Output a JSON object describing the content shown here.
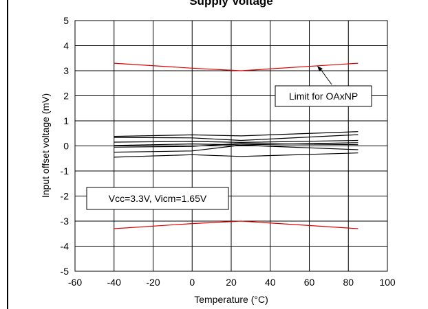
{
  "chart_data": {
    "type": "line",
    "title": "Supply Voltage",
    "xlabel": "Temperature (°C)",
    "ylabel": "Input offset voltage (mV)",
    "xlim": [
      -60,
      100
    ],
    "ylim": [
      -5,
      5
    ],
    "xticks": [
      "-60",
      "-40",
      "-20",
      "0",
      "20",
      "40",
      "60",
      "80",
      "100"
    ],
    "yticks": [
      "5",
      "4",
      "3",
      "2",
      "1",
      "0",
      "-1",
      "-2",
      "-3",
      "-4",
      "-5"
    ],
    "grid": true,
    "x": [
      -40,
      0,
      25,
      85
    ],
    "series": [
      {
        "name": "",
        "color": "#000000",
        "values": [
          0.38,
          0.44,
          0.4,
          0.57
        ]
      },
      {
        "name": "",
        "color": "#000000",
        "values": [
          0.34,
          0.32,
          0.22,
          0.45
        ]
      },
      {
        "name": "",
        "color": "#000000",
        "values": [
          0.15,
          0.18,
          0.14,
          0.22
        ]
      },
      {
        "name": "",
        "color": "#000000",
        "values": [
          0.02,
          0.08,
          0.04,
          0.13
        ]
      },
      {
        "name": "",
        "color": "#000000",
        "values": [
          -0.05,
          -0.02,
          0.1,
          0.05
        ]
      },
      {
        "name": "",
        "color": "#000000",
        "values": [
          -0.25,
          -0.2,
          0.03,
          -0.15
        ]
      },
      {
        "name": "",
        "color": "#000000",
        "values": [
          -0.45,
          -0.35,
          -0.42,
          -0.28
        ]
      },
      {
        "name": "",
        "color": "#e00000",
        "values": [
          3.3,
          3.1,
          3.0,
          3.3
        ]
      },
      {
        "name": "",
        "color": "#e00000",
        "values": [
          -3.3,
          -3.1,
          -3.0,
          -3.3
        ]
      }
    ],
    "annotations": [
      {
        "text": "Limit for OAxNP",
        "arrow_to": [
          63,
          3.2
        ]
      },
      {
        "text": "Vcc=3.3V, Vicm=1.65V"
      }
    ]
  }
}
